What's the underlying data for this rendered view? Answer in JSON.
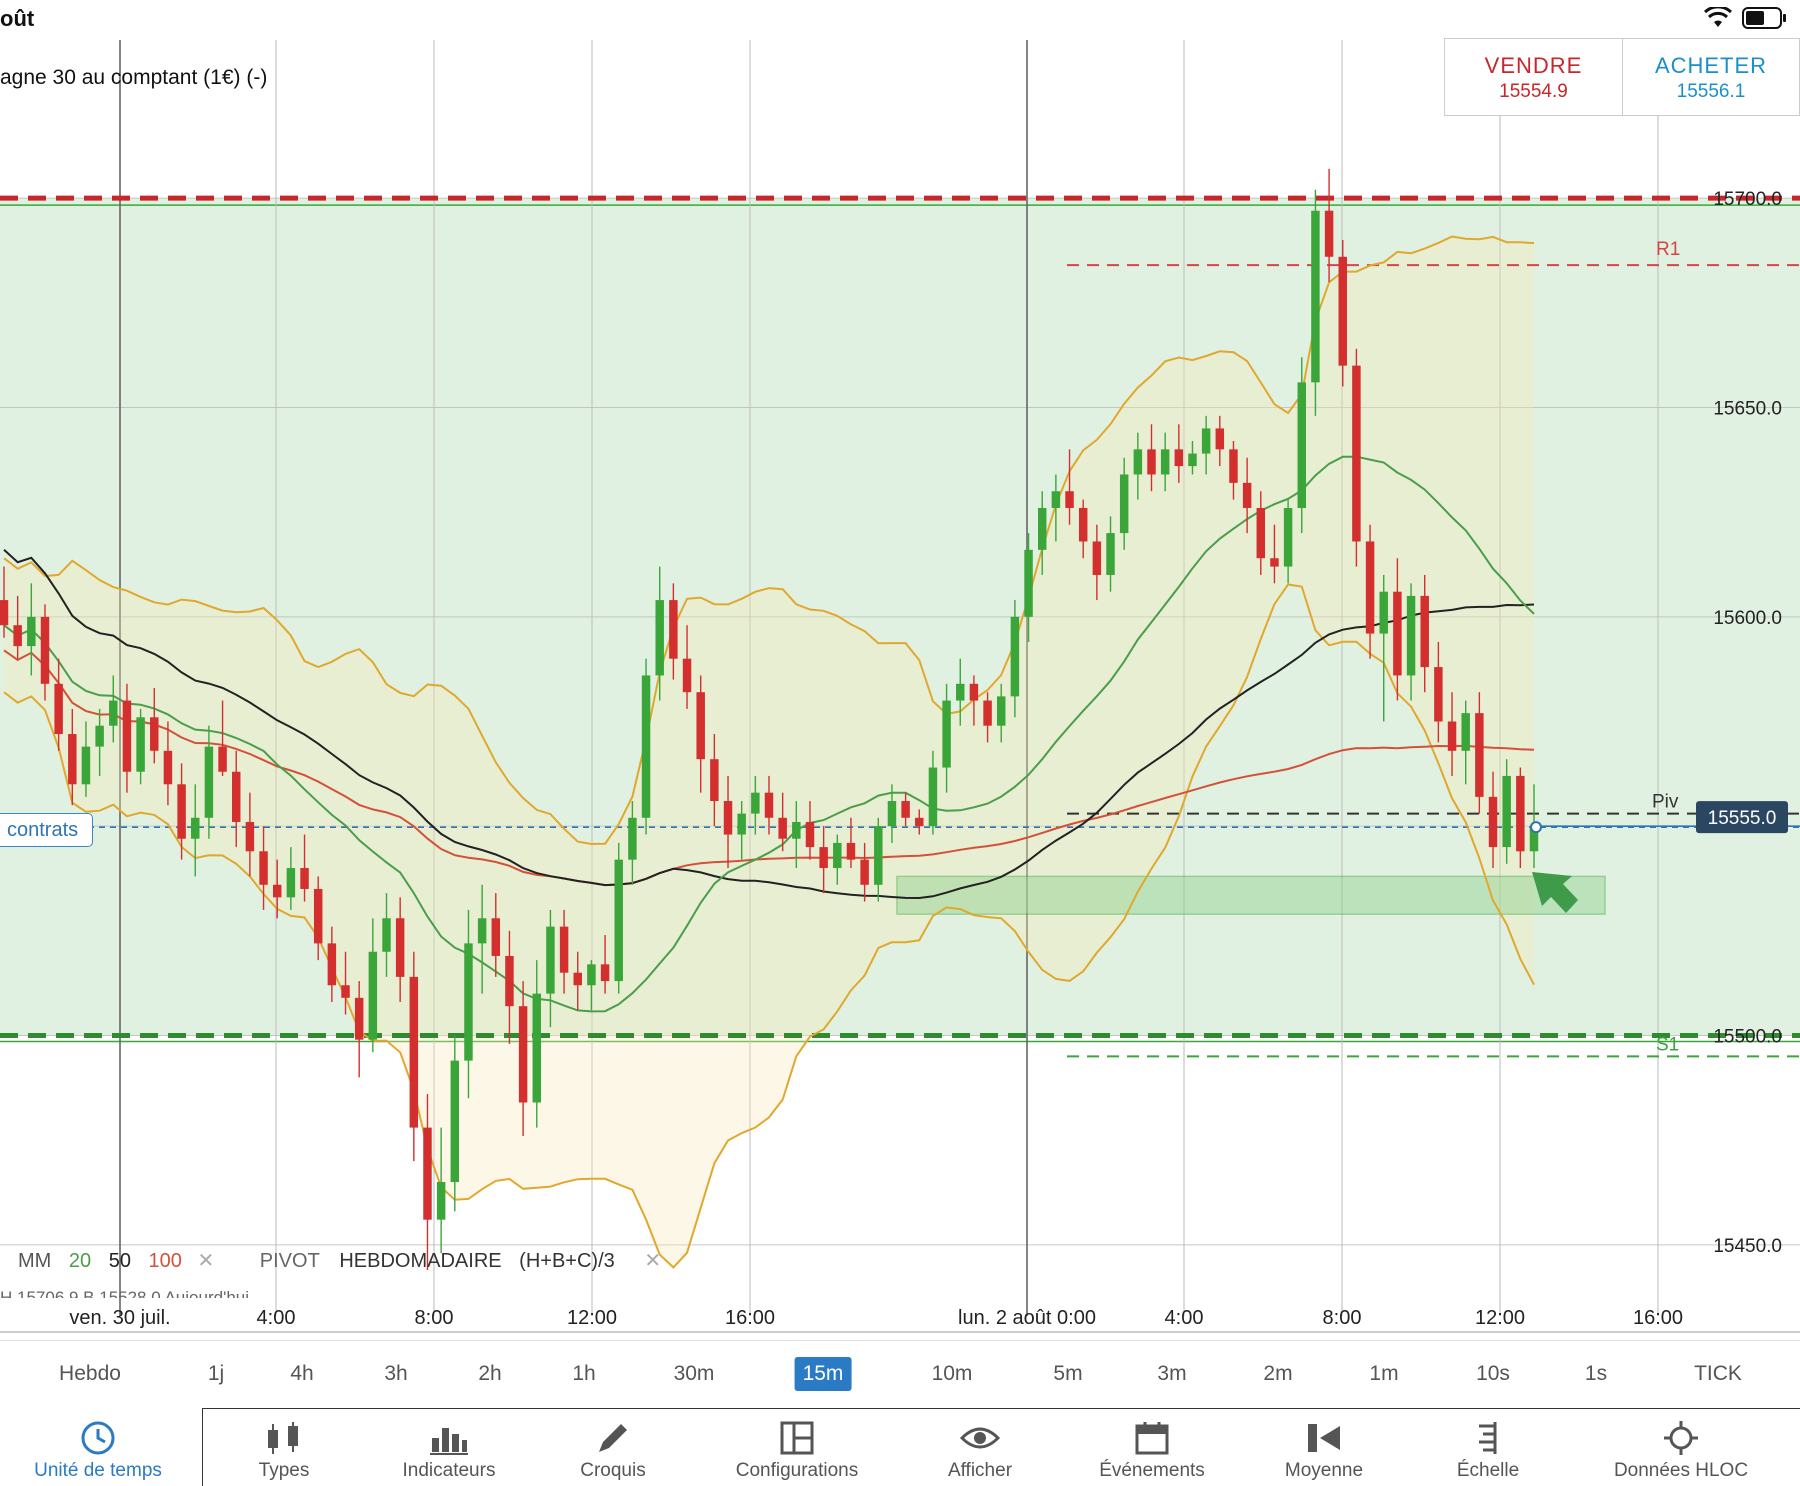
{
  "status_bar": {
    "date_fragment": "oût",
    "wifi_icon": "wifi-icon",
    "battery_icon": "battery-icon"
  },
  "instrument": {
    "name": "agne 30 au comptant (1€) (-)"
  },
  "trade": {
    "sell_label": "VENDRE",
    "sell_price": "15554.9",
    "buy_label": "ACHETER",
    "buy_price": "15556.1",
    "sell_color": "#c8262b",
    "buy_color": "#1a8fc9"
  },
  "position_tag": {
    "label": "contrats"
  },
  "price_tag": {
    "value": "15555.0"
  },
  "chart_data": {
    "type": "candlestick",
    "interval": "15m",
    "y_ticks": [
      "15450.0",
      "15500.0",
      "15550.0",
      "15600.0",
      "15650.0",
      "15700.0"
    ],
    "y_range": [
      15433,
      15733
    ],
    "x_labels": [
      "ven. 30 juil.",
      "4:00",
      "8:00",
      "12:00",
      "16:00",
      "lun. 2 août 0:00",
      "4:00",
      "8:00",
      "12:00",
      "16:00"
    ],
    "resistance_level": 15700.0,
    "support_level": 15500.0,
    "pivot": {
      "label": "Piv",
      "value": 15553
    },
    "r1": {
      "label": "R1",
      "value": 15684
    },
    "s1": {
      "label": "S1",
      "value": 15495
    },
    "current_price": 15550,
    "buy_zone": [
      15529,
      15538
    ],
    "colors": {
      "up": "#3aa63a",
      "down": "#d32f2f",
      "ma20": "#4a9e4a",
      "ma50": "#222222",
      "ma100": "#d4503a",
      "bollinger": "#e0a82e"
    },
    "candles": [
      [
        15604,
        15612,
        15595,
        15598
      ],
      [
        15598,
        15605,
        15590,
        15593
      ],
      [
        15593,
        15608,
        15586,
        15600
      ],
      [
        15600,
        15603,
        15580,
        15584
      ],
      [
        15584,
        15590,
        15568,
        15572
      ],
      [
        15572,
        15578,
        15555,
        15560
      ],
      [
        15560,
        15575,
        15557,
        15569
      ],
      [
        15569,
        15578,
        15562,
        15574
      ],
      [
        15574,
        15586,
        15570,
        15580
      ],
      [
        15580,
        15584,
        15558,
        15563
      ],
      [
        15563,
        15578,
        15560,
        15576
      ],
      [
        15576,
        15583,
        15565,
        15568
      ],
      [
        15568,
        15575,
        15555,
        15560
      ],
      [
        15560,
        15565,
        15542,
        15547
      ],
      [
        15547,
        15560,
        15538,
        15552
      ],
      [
        15552,
        15574,
        15547,
        15569
      ],
      [
        15569,
        15580,
        15562,
        15563
      ],
      [
        15563,
        15568,
        15545,
        15551
      ],
      [
        15551,
        15558,
        15538,
        15544
      ],
      [
        15544,
        15550,
        15530,
        15536
      ],
      [
        15536,
        15542,
        15528,
        15533
      ],
      [
        15533,
        15545,
        15530,
        15540
      ],
      [
        15540,
        15548,
        15532,
        15535
      ],
      [
        15535,
        15538,
        15518,
        15522
      ],
      [
        15522,
        15526,
        15508,
        15512
      ],
      [
        15512,
        15520,
        15505,
        15509
      ],
      [
        15509,
        15513,
        15490,
        15499
      ],
      [
        15499,
        15528,
        15496,
        15520
      ],
      [
        15520,
        15534,
        15514,
        15528
      ],
      [
        15528,
        15533,
        15508,
        15514
      ],
      [
        15514,
        15520,
        15470,
        15478
      ],
      [
        15478,
        15486,
        15444,
        15456
      ],
      [
        15456,
        15478,
        15448,
        15465
      ],
      [
        15465,
        15500,
        15458,
        15494
      ],
      [
        15494,
        15530,
        15485,
        15522
      ],
      [
        15522,
        15536,
        15510,
        15528
      ],
      [
        15528,
        15534,
        15514,
        15519
      ],
      [
        15519,
        15525,
        15498,
        15507
      ],
      [
        15507,
        15513,
        15476,
        15484
      ],
      [
        15484,
        15518,
        15478,
        15510
      ],
      [
        15510,
        15530,
        15502,
        15526
      ],
      [
        15526,
        15530,
        15510,
        15515
      ],
      [
        15515,
        15520,
        15506,
        15512
      ],
      [
        15512,
        15518,
        15506,
        15517
      ],
      [
        15517,
        15524,
        15510,
        15513
      ],
      [
        15513,
        15546,
        15510,
        15542
      ],
      [
        15542,
        15556,
        15536,
        15552
      ],
      [
        15552,
        15590,
        15548,
        15586
      ],
      [
        15586,
        15612,
        15580,
        15604
      ],
      [
        15604,
        15608,
        15585,
        15590
      ],
      [
        15590,
        15598,
        15578,
        15582
      ],
      [
        15582,
        15586,
        15558,
        15566
      ],
      [
        15566,
        15572,
        15550,
        15556
      ],
      [
        15556,
        15562,
        15540,
        15548
      ],
      [
        15548,
        15556,
        15542,
        15553
      ],
      [
        15553,
        15562,
        15548,
        15558
      ],
      [
        15558,
        15562,
        15548,
        15552
      ],
      [
        15552,
        15558,
        15544,
        15547
      ],
      [
        15547,
        15556,
        15540,
        15551
      ],
      [
        15551,
        15556,
        15542,
        15545
      ],
      [
        15545,
        15550,
        15534,
        15540
      ],
      [
        15540,
        15548,
        15536,
        15546
      ],
      [
        15546,
        15552,
        15540,
        15542
      ],
      [
        15542,
        15546,
        15532,
        15536
      ],
      [
        15536,
        15552,
        15532,
        15550
      ],
      [
        15550,
        15560,
        15546,
        15556
      ],
      [
        15556,
        15558,
        15550,
        15552
      ],
      [
        15552,
        15554,
        15548,
        15550
      ],
      [
        15550,
        15568,
        15548,
        15564
      ],
      [
        15564,
        15584,
        15558,
        15580
      ],
      [
        15580,
        15590,
        15574,
        15584
      ],
      [
        15584,
        15586,
        15574,
        15580
      ],
      [
        15580,
        15582,
        15570,
        15574
      ],
      [
        15574,
        15584,
        15570,
        15581
      ],
      [
        15581,
        15604,
        15576,
        15600
      ],
      [
        15600,
        15620,
        15594,
        15616
      ],
      [
        15616,
        15630,
        15610,
        15626
      ],
      [
        15626,
        15634,
        15618,
        15630
      ],
      [
        15630,
        15640,
        15622,
        15626
      ],
      [
        15626,
        15628,
        15614,
        15618
      ],
      [
        15618,
        15622,
        15604,
        15610
      ],
      [
        15610,
        15624,
        15606,
        15620
      ],
      [
        15620,
        15638,
        15616,
        15634
      ],
      [
        15634,
        15644,
        15628,
        15640
      ],
      [
        15640,
        15646,
        15630,
        15634
      ],
      [
        15634,
        15644,
        15630,
        15640
      ],
      [
        15640,
        15646,
        15632,
        15636
      ],
      [
        15636,
        15642,
        15634,
        15639
      ],
      [
        15639,
        15648,
        15634,
        15645
      ],
      [
        15645,
        15648,
        15636,
        15640
      ],
      [
        15640,
        15642,
        15628,
        15632
      ],
      [
        15632,
        15638,
        15620,
        15626
      ],
      [
        15626,
        15630,
        15610,
        15614
      ],
      [
        15614,
        15622,
        15608,
        15612
      ],
      [
        15612,
        15628,
        15608,
        15626
      ],
      [
        15626,
        15662,
        15620,
        15656
      ],
      [
        15656,
        15702,
        15648,
        15697
      ],
      [
        15697,
        15707,
        15680,
        15686
      ],
      [
        15686,
        15690,
        15655,
        15660
      ],
      [
        15660,
        15664,
        15612,
        15618
      ],
      [
        15618,
        15622,
        15590,
        15596
      ],
      [
        15596,
        15610,
        15575,
        15606
      ],
      [
        15606,
        15614,
        15580,
        15586
      ],
      [
        15586,
        15608,
        15580,
        15605
      ],
      [
        15605,
        15610,
        15582,
        15588
      ],
      [
        15588,
        15594,
        15570,
        15575
      ],
      [
        15575,
        15582,
        15562,
        15568
      ],
      [
        15568,
        15580,
        15560,
        15577
      ],
      [
        15577,
        15582,
        15553,
        15557
      ],
      [
        15557,
        15563,
        15540,
        15545
      ],
      [
        15545,
        15566,
        15541,
        15562
      ],
      [
        15562,
        15564,
        15540,
        15544
      ],
      [
        15544,
        15560,
        15540,
        15550
      ]
    ]
  },
  "indicator_legend": {
    "ma_label": "MM",
    "ma_20": "20",
    "ma_50": "50",
    "ma_100": "100",
    "pivot_label": "PIVOT",
    "pivot_period": "HEBDOMADAIRE",
    "pivot_formula": "(H+B+C)/3",
    "truncated_row": "H 15706.9    B 15528.0    Aujourd'hui",
    "remove_icon": "close-icon"
  },
  "timeframes": [
    "Hebdo",
    "1j",
    "4h",
    "3h",
    "2h",
    "1h",
    "30m",
    "15m",
    "10m",
    "5m",
    "3m",
    "2m",
    "1m",
    "10s",
    "1s",
    "TICK"
  ],
  "timeframe_active": "15m",
  "toolbar": [
    {
      "label": "Unité de temps",
      "icon": "clock-icon",
      "active": true
    },
    {
      "label": "Types",
      "icon": "candles-icon",
      "active": false
    },
    {
      "label": "Indicateurs",
      "icon": "bar-chart-icon",
      "active": false
    },
    {
      "label": "Croquis",
      "icon": "pencil-icon",
      "active": false
    },
    {
      "label": "Configurations",
      "icon": "layout-icon",
      "active": false
    },
    {
      "label": "Afficher",
      "icon": "eye-icon",
      "active": false
    },
    {
      "label": "Événements",
      "icon": "calendar-icon",
      "active": false
    },
    {
      "label": "Moyenne",
      "icon": "average-icon",
      "active": false
    },
    {
      "label": "Échelle",
      "icon": "scale-icon",
      "active": false
    },
    {
      "label": "Données HLOC",
      "icon": "crosshair-icon",
      "active": false
    }
  ]
}
